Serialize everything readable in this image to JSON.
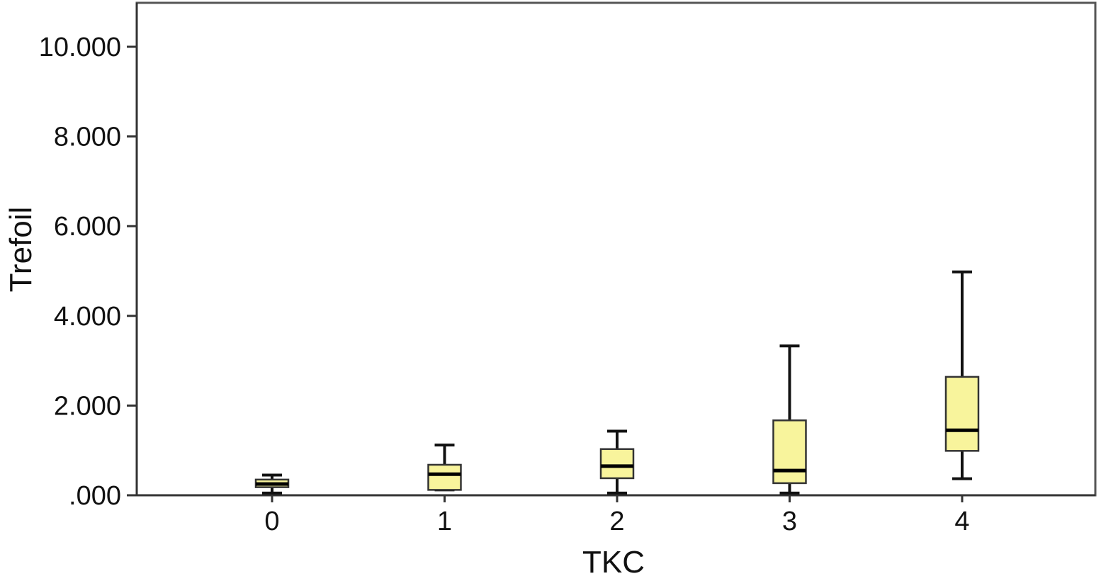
{
  "chart_data": {
    "type": "boxplot",
    "title": "",
    "xlabel": "TKC",
    "ylabel": "Trefoil",
    "categories": [
      "0",
      "1",
      "2",
      "3",
      "4"
    ],
    "yticks": [
      ".000",
      "2.000",
      "4.000",
      "6.000",
      "8.000",
      "10.000"
    ],
    "ytick_values": [
      0,
      2,
      4,
      6,
      8,
      10
    ],
    "ylim": [
      0,
      11.0
    ],
    "grid": false,
    "legend": "none",
    "box_fill": "#F8F49C",
    "box_stroke": "#333333",
    "boxes": [
      {
        "category": "0",
        "min": 0.05,
        "q1": 0.18,
        "median": 0.25,
        "q3": 0.35,
        "max": 0.45
      },
      {
        "category": "1",
        "min": 0.12,
        "q1": 0.12,
        "median": 0.47,
        "q3": 0.68,
        "max": 1.12
      },
      {
        "category": "2",
        "min": 0.05,
        "q1": 0.38,
        "median": 0.65,
        "q3": 1.03,
        "max": 1.43
      },
      {
        "category": "3",
        "min": 0.05,
        "q1": 0.27,
        "median": 0.55,
        "q3": 1.67,
        "max": 3.33
      },
      {
        "category": "4",
        "min": 0.37,
        "q1": 0.99,
        "median": 1.45,
        "q3": 2.64,
        "max": 4.98
      }
    ]
  }
}
